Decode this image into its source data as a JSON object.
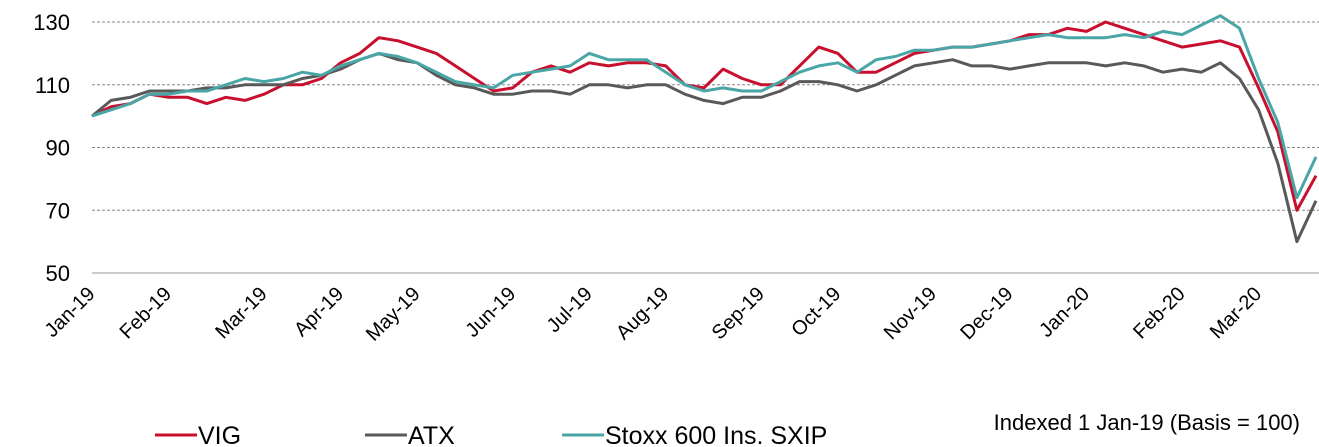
{
  "chart_data": {
    "type": "line",
    "annotation": "Indexed 1 Jan-19 (Basis = 100)",
    "categories": [
      "Jan-19",
      null,
      null,
      null,
      "Feb-19",
      null,
      null,
      null,
      null,
      "Mar-19",
      null,
      null,
      null,
      "Apr-19",
      null,
      null,
      null,
      "May-19",
      null,
      null,
      null,
      null,
      "Jun-19",
      null,
      null,
      null,
      "Jul-19",
      null,
      null,
      null,
      "Aug-19",
      null,
      null,
      null,
      null,
      "Sep-19",
      null,
      null,
      null,
      "Oct-19",
      null,
      null,
      null,
      null,
      "Nov-19",
      null,
      null,
      null,
      "Dec-19",
      null,
      null,
      null,
      "Jan-20",
      null,
      null,
      null,
      null,
      "Feb-20",
      null,
      null,
      null,
      "Mar-20",
      null,
      null,
      null
    ],
    "series": [
      {
        "name": "VIG",
        "color": "#c8102e",
        "values": [
          100,
          103,
          104,
          107,
          106,
          106,
          104,
          106,
          105,
          107,
          110,
          110,
          112,
          117,
          120,
          125,
          124,
          122,
          120,
          116,
          112,
          108,
          109,
          114,
          116,
          114,
          117,
          116,
          117,
          117,
          116,
          110,
          109,
          115,
          112,
          110,
          110,
          116,
          122,
          120,
          114,
          114,
          117,
          120,
          121,
          122,
          122,
          123,
          124,
          126,
          126,
          128,
          127,
          130,
          128,
          126,
          124,
          122,
          123,
          124,
          122,
          109,
          95,
          70,
          81
        ]
      },
      {
        "name": "ATX",
        "color": "#595959",
        "values": [
          100,
          105,
          106,
          108,
          108,
          108,
          109,
          109,
          110,
          110,
          110,
          112,
          113,
          115,
          118,
          120,
          118,
          117,
          113,
          110,
          109,
          107,
          107,
          108,
          108,
          107,
          110,
          110,
          109,
          110,
          110,
          107,
          105,
          104,
          106,
          106,
          108,
          111,
          111,
          110,
          108,
          110,
          113,
          116,
          117,
          118,
          116,
          116,
          115,
          116,
          117,
          117,
          117,
          116,
          117,
          116,
          114,
          115,
          114,
          117,
          112,
          102,
          85,
          60,
          73
        ]
      },
      {
        "name": "Stoxx 600 Ins. SXIP",
        "color": "#4aa6a6",
        "values": [
          100,
          102,
          104,
          107,
          107,
          108,
          108,
          110,
          112,
          111,
          112,
          114,
          113,
          116,
          118,
          120,
          119,
          117,
          114,
          111,
          110,
          109,
          113,
          114,
          115,
          116,
          120,
          118,
          118,
          118,
          114,
          110,
          108,
          109,
          108,
          108,
          111,
          114,
          116,
          117,
          114,
          118,
          119,
          121,
          121,
          122,
          122,
          123,
          124,
          125,
          126,
          125,
          125,
          125,
          126,
          125,
          127,
          126,
          129,
          132,
          128,
          112,
          98,
          74,
          87
        ]
      }
    ],
    "ylim": [
      50,
      130
    ],
    "yticks": [
      50,
      70,
      90,
      110,
      130
    ],
    "grid": true,
    "legend": "bottom"
  }
}
